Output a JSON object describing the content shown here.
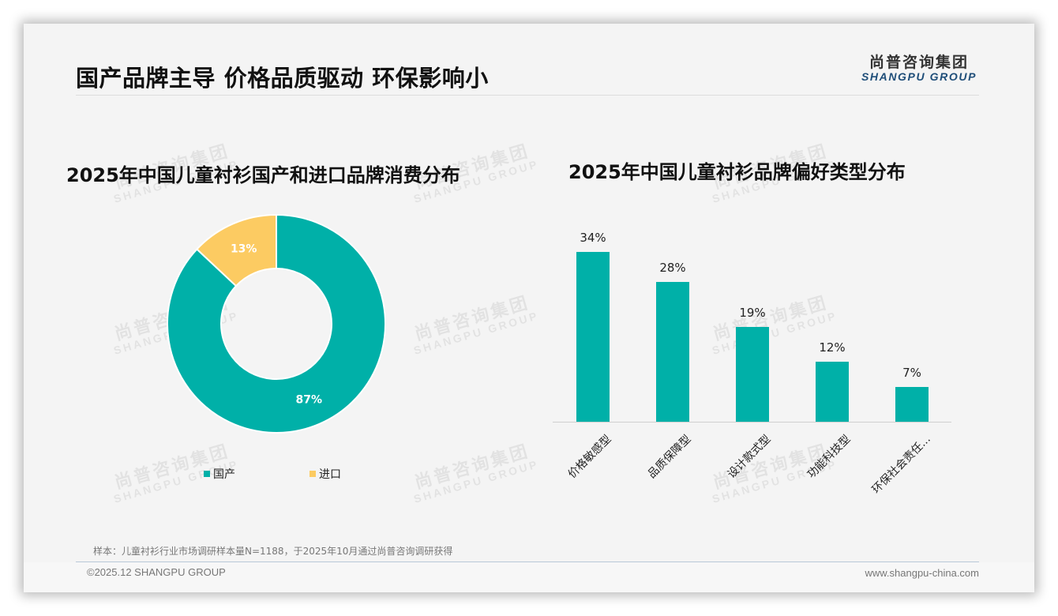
{
  "header": {
    "title": "国产品牌主导 价格品质驱动 环保影响小",
    "logo_cn": "尚普咨询集团",
    "logo_en": "SHANGPU GROUP"
  },
  "watermark": {
    "cn": "尚普咨询集团",
    "en": "SHANGPU GROUP"
  },
  "left_chart": {
    "title": "2025年中国儿童衬衫国产和进口品牌消费分布",
    "slices": [
      {
        "label": "国产",
        "value": 87,
        "display": "87%",
        "color": "#00b0a8"
      },
      {
        "label": "进口",
        "value": 13,
        "display": "13%",
        "color": "#fccb62"
      }
    ]
  },
  "right_chart": {
    "title": "2025年中国儿童衬衫品牌偏好类型分布",
    "bars": [
      {
        "label": "价格敏感型",
        "value": 34,
        "display": "34%"
      },
      {
        "label": "品质保障型",
        "value": 28,
        "display": "28%"
      },
      {
        "label": "设计款式型",
        "value": 19,
        "display": "19%"
      },
      {
        "label": "功能科技型",
        "value": 12,
        "display": "12%"
      },
      {
        "label": "环保社会责任...",
        "value": 7,
        "display": "7%"
      }
    ],
    "bar_color": "#00b0a8"
  },
  "footer": {
    "note": "样本：儿童衬衫行业市场调研样本量N=1188，于2025年10月通过尚普咨询调研获得",
    "copyright": "©2025.12 SHANGPU GROUP",
    "website": "www.shangpu-china.com"
  },
  "chart_data": [
    {
      "type": "pie",
      "title": "2025年中国儿童衬衫国产和进口品牌消费分布",
      "categories": [
        "国产",
        "进口"
      ],
      "values": [
        87,
        13
      ],
      "unit": "%",
      "donut": true,
      "legend_position": "bottom",
      "colors": [
        "#00b0a8",
        "#fccb62"
      ]
    },
    {
      "type": "bar",
      "title": "2025年中国儿童衬衫品牌偏好类型分布",
      "categories": [
        "价格敏感型",
        "品质保障型",
        "设计款式型",
        "功能科技型",
        "环保社会责任..."
      ],
      "values": [
        34,
        28,
        19,
        12,
        7
      ],
      "unit": "%",
      "xlabel": "",
      "ylabel": "",
      "ylim": [
        0,
        40
      ],
      "grid": false,
      "data_labels": true
    }
  ]
}
